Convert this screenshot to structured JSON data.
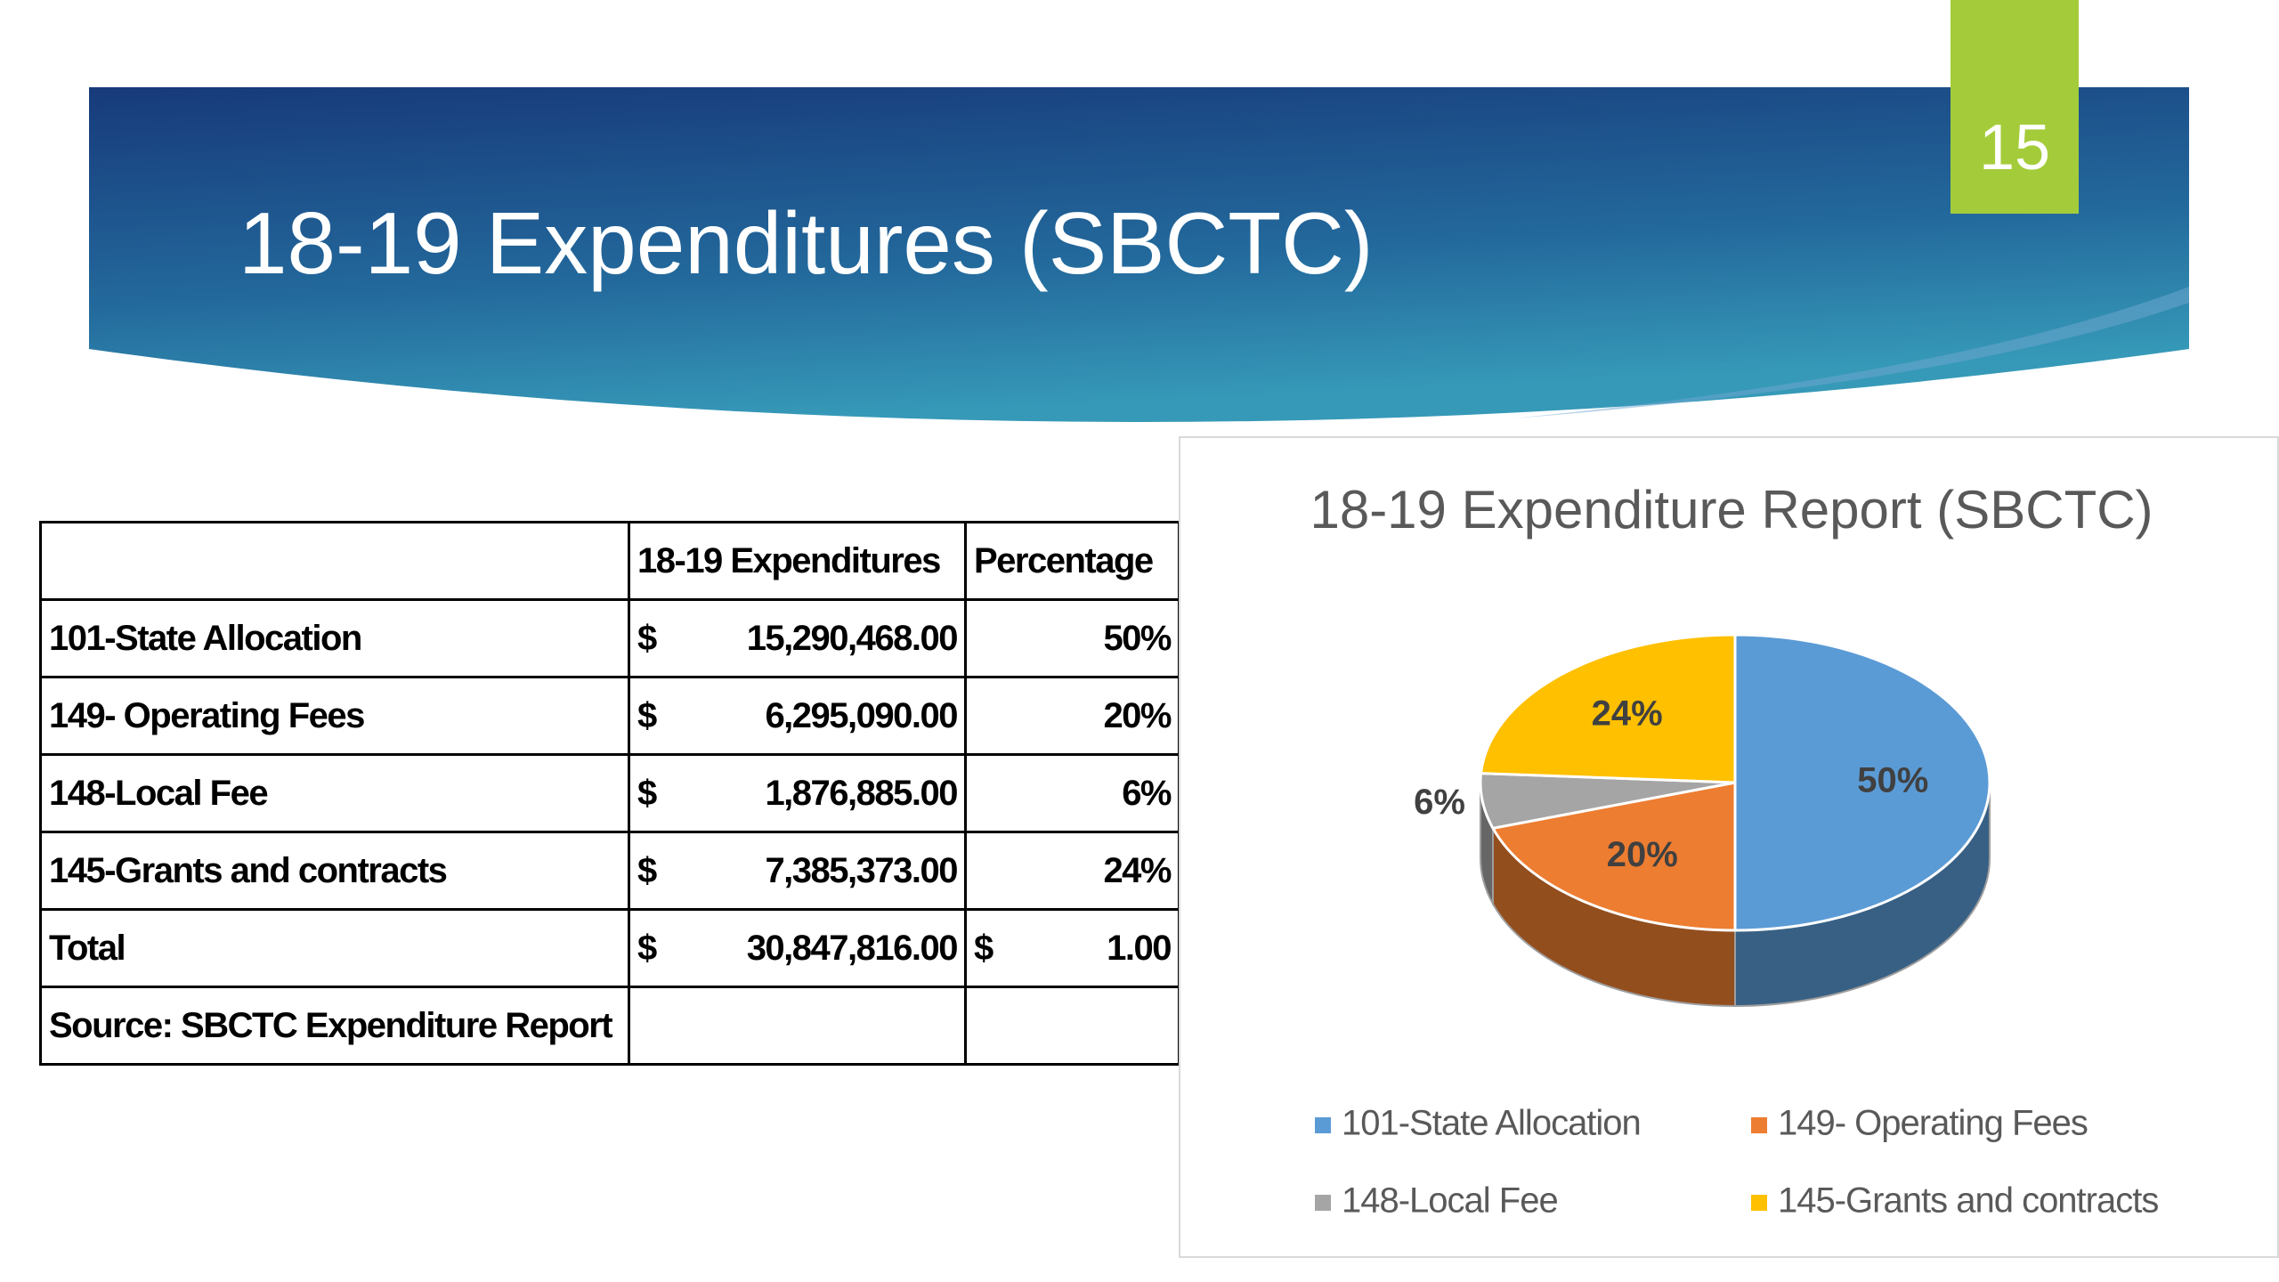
{
  "slide_number": "15",
  "title": "18-19 Expenditures (SBCTC)",
  "table": {
    "header": [
      "18-19 Expenditures",
      "Percentage"
    ],
    "rows": [
      {
        "label": "101-State Allocation",
        "currency": "$",
        "amount": "15,290,468.00",
        "percent": "50%"
      },
      {
        "label": "149- Operating Fees",
        "currency": "$",
        "amount": "6,295,090.00",
        "percent": "20%"
      },
      {
        "label": "148-Local Fee",
        "currency": "$",
        "amount": "1,876,885.00",
        "percent": "6%"
      },
      {
        "label": "145-Grants and contracts",
        "currency": "$",
        "amount": "7,385,373.00",
        "percent": "24%"
      }
    ],
    "total": {
      "label": "Total",
      "currency": "$",
      "amount": "30,847,816.00",
      "percent_currency": "$",
      "percent": "1.00"
    },
    "source": "Source: SBCTC Expenditure Report"
  },
  "chart_data": {
    "type": "pie",
    "title": "18-19 Expenditure Report (SBCTC)",
    "categories": [
      "101-State Allocation",
      "149- Operating Fees",
      "148-Local Fee",
      "145-Grants and contracts"
    ],
    "values": [
      50,
      20,
      6,
      24
    ],
    "value_labels": [
      "50%",
      "20%",
      "6%",
      "24%"
    ],
    "colors": [
      "#5b9bd5",
      "#ed7d31",
      "#a5a5a5",
      "#ffc000"
    ],
    "legend": "bottom"
  }
}
